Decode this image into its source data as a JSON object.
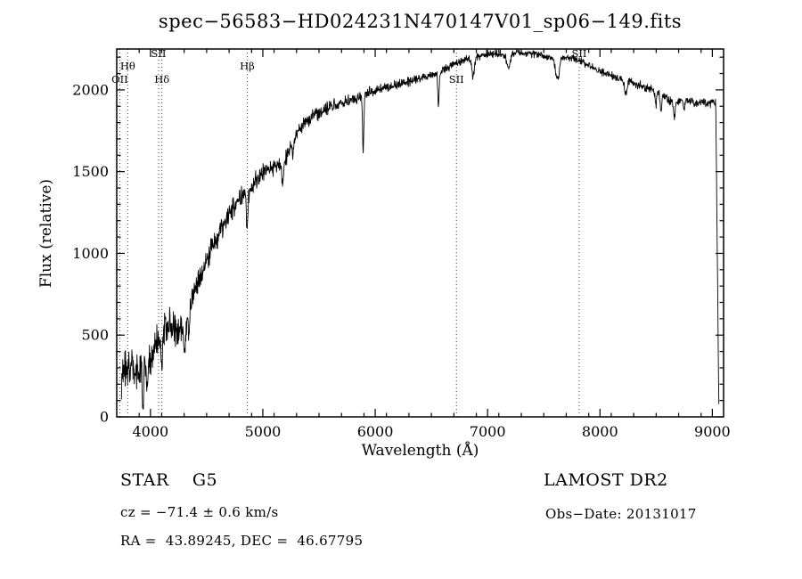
{
  "chart_data": {
    "type": "line",
    "title": "spec−56583−HD024231N470147V01_sp06−149.fits",
    "xlabel": "Wavelength (Å)",
    "ylabel": "Flux (relative)",
    "xlim": [
      3700,
      9100
    ],
    "ylim": [
      0,
      2250
    ],
    "xticks": [
      4000,
      5000,
      6000,
      7000,
      8000,
      9000
    ],
    "yticks": [
      0,
      500,
      1000,
      1500,
      2000
    ],
    "x_minor_step": 200,
    "y_minor_step": 100,
    "grid": false,
    "legend": "none",
    "line_color": "#000000",
    "marker_line_color": "#333333",
    "noise_seed": 20131017,
    "sample_step_angstrom": 3,
    "continuum_points": [
      [
        3742,
        140
      ],
      [
        3760,
        320
      ],
      [
        3800,
        270
      ],
      [
        3850,
        330
      ],
      [
        3900,
        280
      ],
      [
        3950,
        360
      ],
      [
        4000,
        340
      ],
      [
        4040,
        470
      ],
      [
        4080,
        420
      ],
      [
        4130,
        560
      ],
      [
        4180,
        570
      ],
      [
        4240,
        520
      ],
      [
        4300,
        560
      ],
      [
        4360,
        700
      ],
      [
        4420,
        820
      ],
      [
        4500,
        960
      ],
      [
        4600,
        1110
      ],
      [
        4700,
        1240
      ],
      [
        4800,
        1330
      ],
      [
        4900,
        1410
      ],
      [
        5000,
        1500
      ],
      [
        5100,
        1530
      ],
      [
        5200,
        1570
      ],
      [
        5280,
        1720
      ],
      [
        5350,
        1780
      ],
      [
        5450,
        1840
      ],
      [
        5550,
        1880
      ],
      [
        5650,
        1910
      ],
      [
        5750,
        1930
      ],
      [
        5850,
        1950
      ],
      [
        5950,
        1985
      ],
      [
        6050,
        2010
      ],
      [
        6150,
        2020
      ],
      [
        6250,
        2045
      ],
      [
        6350,
        2060
      ],
      [
        6450,
        2080
      ],
      [
        6550,
        2100
      ],
      [
        6650,
        2140
      ],
      [
        6750,
        2170
      ],
      [
        6850,
        2195
      ],
      [
        6950,
        2210
      ],
      [
        7050,
        2225
      ],
      [
        7150,
        2215
      ],
      [
        7250,
        2230
      ],
      [
        7350,
        2225
      ],
      [
        7450,
        2215
      ],
      [
        7550,
        2200
      ],
      [
        7650,
        2195
      ],
      [
        7750,
        2200
      ],
      [
        7850,
        2170
      ],
      [
        7950,
        2130
      ],
      [
        8050,
        2100
      ],
      [
        8150,
        2075
      ],
      [
        8250,
        2055
      ],
      [
        8350,
        2030
      ],
      [
        8450,
        2010
      ],
      [
        8550,
        1975
      ],
      [
        8650,
        1915
      ],
      [
        8750,
        1945
      ],
      [
        8850,
        1925
      ],
      [
        8950,
        1915
      ],
      [
        9030,
        1920
      ],
      [
        9058,
        70
      ]
    ],
    "absorption_features": [
      {
        "center": 3933,
        "depth": 260,
        "width": 6
      },
      {
        "center": 3968,
        "depth": 230,
        "width": 6
      },
      {
        "center": 4102,
        "depth": 190,
        "width": 7
      },
      {
        "center": 4305,
        "depth": 160,
        "width": 10
      },
      {
        "center": 4340,
        "depth": 150,
        "width": 7
      },
      {
        "center": 4861,
        "depth": 230,
        "width": 7
      },
      {
        "center": 5175,
        "depth": 130,
        "width": 9
      },
      {
        "center": 5270,
        "depth": 100,
        "width": 8
      },
      {
        "center": 5893,
        "depth": 330,
        "width": 6
      },
      {
        "center": 6563,
        "depth": 200,
        "width": 6
      },
      {
        "center": 6870,
        "depth": 110,
        "width": 12
      },
      {
        "center": 7186,
        "depth": 90,
        "width": 14
      },
      {
        "center": 7620,
        "depth": 140,
        "width": 16
      },
      {
        "center": 8230,
        "depth": 90,
        "width": 10
      },
      {
        "center": 8498,
        "depth": 90,
        "width": 7
      },
      {
        "center": 8542,
        "depth": 110,
        "width": 7
      },
      {
        "center": 8662,
        "depth": 100,
        "width": 7
      },
      {
        "center": 8750,
        "depth": 60,
        "width": 8
      }
    ],
    "noise_profile": [
      [
        3742,
        170
      ],
      [
        3850,
        150
      ],
      [
        4000,
        130
      ],
      [
        4200,
        115
      ],
      [
        4400,
        100
      ],
      [
        4700,
        80
      ],
      [
        5000,
        62
      ],
      [
        5300,
        52
      ],
      [
        5600,
        46
      ],
      [
        6000,
        40
      ],
      [
        6400,
        34
      ],
      [
        6800,
        30
      ],
      [
        7200,
        27
      ],
      [
        7600,
        27
      ],
      [
        8000,
        29
      ],
      [
        8400,
        31
      ],
      [
        8800,
        33
      ],
      [
        9058,
        28
      ]
    ],
    "line_markers": [
      {
        "label": "OII",
        "wavelength": 3727,
        "row": 2
      },
      {
        "label": "Hθ",
        "wavelength": 3798,
        "row": 1
      },
      {
        "label": "SII",
        "wavelength": 4072,
        "row": 0
      },
      {
        "label": "Hδ",
        "wavelength": 4102,
        "row": 2
      },
      {
        "label": "Hβ",
        "wavelength": 4861,
        "row": 1
      },
      {
        "label": "SII",
        "wavelength": 6723,
        "row": 2
      },
      {
        "label": "SII",
        "wavelength": 7815,
        "row": 0
      }
    ]
  },
  "annotations": {
    "star_class": "STAR    G5",
    "survey": "LAMOST DR2",
    "cz": "cz = −71.4 ± 0.6 km/s",
    "obs_date": "Obs−Date: 20131017",
    "radec": "RA =  43.89245, DEC =  46.67795"
  }
}
